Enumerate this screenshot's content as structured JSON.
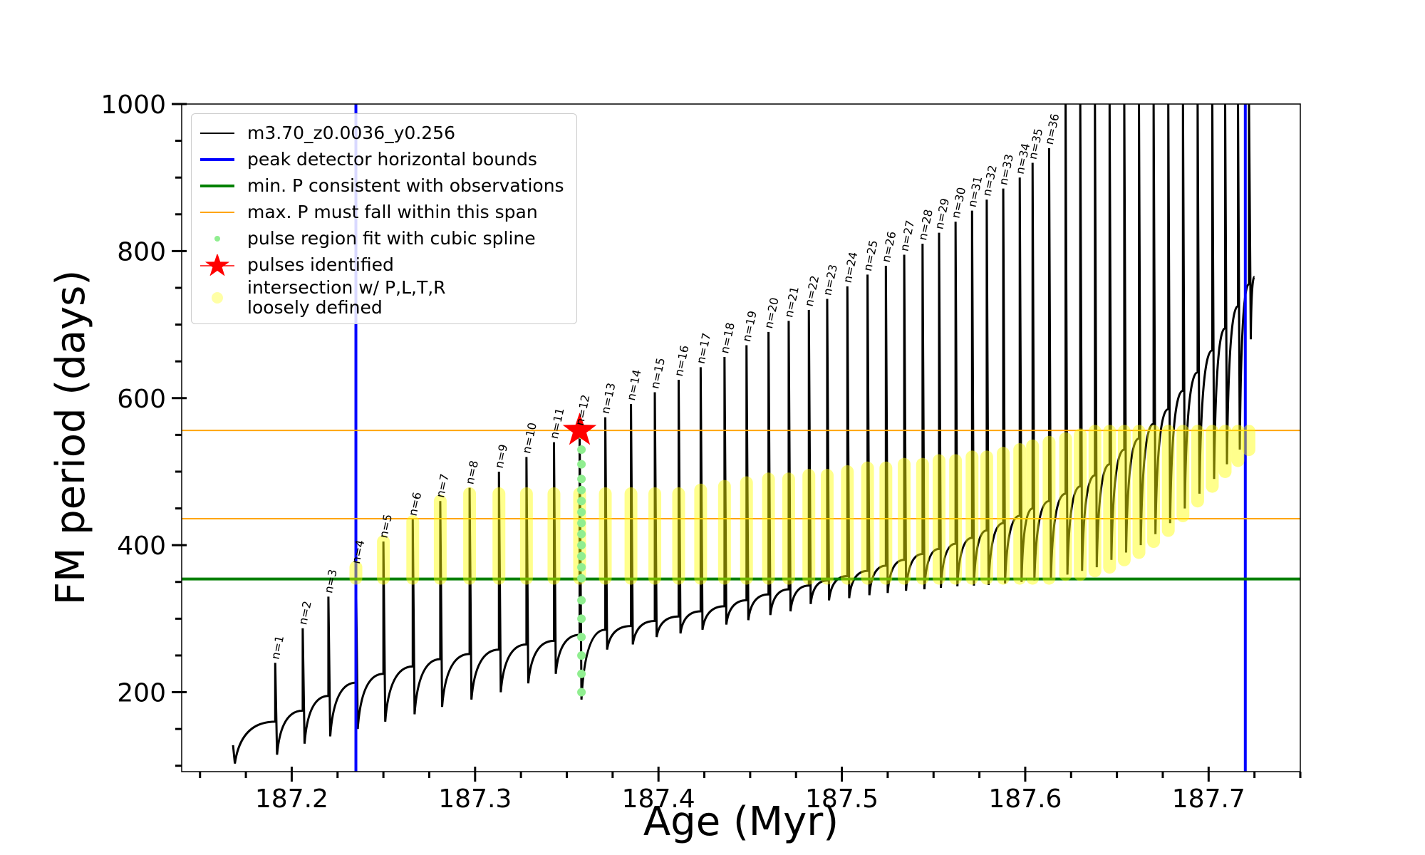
{
  "chart_data": {
    "type": "line",
    "xlabel": "Age (Myr)",
    "ylabel": "FM period (days)",
    "xlim": [
      187.14,
      187.75
    ],
    "ylim": [
      92,
      1000
    ],
    "xticks": [
      187.2,
      187.3,
      187.4,
      187.5,
      187.6,
      187.7
    ],
    "yticks": [
      200,
      400,
      600,
      800,
      1000
    ],
    "xminorticks": [
      187.15,
      187.175,
      187.225,
      187.25,
      187.275,
      187.325,
      187.35,
      187.375,
      187.425,
      187.45,
      187.475,
      187.525,
      187.55,
      187.575,
      187.625,
      187.65,
      187.675,
      187.725,
      187.75
    ],
    "yminorticks": [
      100,
      150,
      250,
      300,
      350,
      450,
      500,
      550,
      650,
      700,
      750,
      850,
      900,
      950
    ],
    "legend": "upper left",
    "annotations": [
      "n=1",
      "n=2",
      "n=3",
      "n=4",
      "n=5",
      "n=6",
      "n=7",
      "n=8",
      "n=9",
      "n=10",
      "n=11",
      "n=12",
      "n=13",
      "n=14",
      "n=15",
      "n=16",
      "n=17",
      "n=18",
      "n=19",
      "n=20",
      "n=21",
      "n=22",
      "n=23",
      "n=24",
      "n=25",
      "n=26",
      "n=27",
      "n=28",
      "n=29",
      "n=30",
      "n=31",
      "n=32",
      "n=33",
      "n=34",
      "n=35",
      "n=36"
    ],
    "series": [
      {
        "name": "m3.70_z0.0036_y0.256",
        "kind": "line",
        "color": "#000000",
        "x": [
          187.168,
          187.169,
          187.191,
          187.191,
          187.192,
          187.206,
          187.206,
          187.207,
          187.22,
          187.22,
          187.221,
          187.235,
          187.235,
          187.236,
          187.25,
          187.25,
          187.251,
          187.266,
          187.266,
          187.267,
          187.281,
          187.281,
          187.282,
          187.297,
          187.297,
          187.298,
          187.313,
          187.313,
          187.314,
          187.328,
          187.328,
          187.329,
          187.343,
          187.343,
          187.344,
          187.357,
          187.357,
          187.358,
          187.371,
          187.371,
          187.372,
          187.385,
          187.385,
          187.386,
          187.398,
          187.398,
          187.399,
          187.411,
          187.411,
          187.412,
          187.423,
          187.423,
          187.424,
          187.436,
          187.436,
          187.437,
          187.448,
          187.448,
          187.449,
          187.46,
          187.46,
          187.461,
          187.471,
          187.471,
          187.472,
          187.482,
          187.482,
          187.483,
          187.492,
          187.492,
          187.493,
          187.503,
          187.503,
          187.504,
          187.514,
          187.514,
          187.515,
          187.524,
          187.524,
          187.525,
          187.534,
          187.534,
          187.535,
          187.544,
          187.544,
          187.545,
          187.553,
          187.553,
          187.554,
          187.562,
          187.562,
          187.563,
          187.571,
          187.571,
          187.572,
          187.579,
          187.579,
          187.58,
          187.588,
          187.588,
          187.589,
          187.597,
          187.597,
          187.598,
          187.604,
          187.604,
          187.605,
          187.613,
          187.613,
          187.614,
          187.622,
          187.622,
          187.623,
          187.63,
          187.63,
          187.631,
          187.638,
          187.638,
          187.639,
          187.646,
          187.646,
          187.647,
          187.654,
          187.654,
          187.655,
          187.662,
          187.662,
          187.663,
          187.67,
          187.67,
          187.671,
          187.678,
          187.678,
          187.679,
          187.686,
          187.686,
          187.687,
          187.694,
          187.694,
          187.695,
          187.702,
          187.702,
          187.703,
          187.709,
          187.709,
          187.71,
          187.716,
          187.716,
          187.717,
          187.722,
          187.722,
          187.723,
          187.725
        ],
        "values": [
          128,
          103,
          160,
          240,
          115,
          175,
          287,
          130,
          195,
          330,
          140,
          213,
          370,
          150,
          225,
          405,
          160,
          235,
          435,
          170,
          245,
          460,
          180,
          252,
          478,
          190,
          258,
          500,
          200,
          265,
          520,
          212,
          270,
          540,
          225,
          278,
          558,
          190,
          285,
          574,
          258,
          290,
          592,
          265,
          297,
          608,
          275,
          303,
          625,
          280,
          310,
          642,
          285,
          317,
          656,
          292,
          325,
          672,
          298,
          333,
          690,
          305,
          340,
          705,
          310,
          345,
          720,
          320,
          352,
          735,
          325,
          358,
          752,
          328,
          365,
          768,
          332,
          372,
          780,
          335,
          380,
          795,
          338,
          388,
          810,
          340,
          395,
          825,
          342,
          402,
          840,
          344,
          410,
          855,
          345,
          420,
          870,
          346,
          430,
          885,
          348,
          440,
          900,
          350,
          450,
          920,
          352,
          460,
          940,
          355,
          470,
          1010,
          360,
          480,
          1010,
          365,
          495,
          1010,
          370,
          510,
          1010,
          380,
          530,
          1010,
          390,
          545,
          1010,
          400,
          565,
          1010,
          415,
          585,
          1010,
          430,
          610,
          1010,
          450,
          635,
          1010,
          470,
          665,
          1010,
          490,
          695,
          1010,
          510,
          725,
          1010,
          530,
          755,
          1010,
          680,
          765
        ]
      },
      {
        "name": "peak detector horizontal bounds",
        "kind": "vline",
        "color": "#0000ff",
        "x": [
          187.235,
          187.72
        ]
      },
      {
        "name": "min. P consistent with observations",
        "kind": "hline",
        "color": "#008000",
        "values": [
          354
        ]
      },
      {
        "name": "max. P must fall within this span",
        "kind": "hline",
        "color": "#ffa500",
        "values": [
          556,
          436
        ]
      },
      {
        "name": "pulse region fit with cubic spline",
        "kind": "scatter",
        "color": "#90ee90",
        "x": [
          187.358,
          187.358,
          187.358,
          187.358,
          187.358,
          187.358,
          187.358,
          187.358,
          187.358,
          187.358,
          187.358,
          187.358,
          187.358,
          187.358,
          187.358,
          187.358,
          187.358,
          187.358,
          187.358
        ],
        "values": [
          200,
          225,
          250,
          275,
          300,
          325,
          355,
          370,
          385,
          400,
          415,
          430,
          445,
          460,
          475,
          490,
          510,
          530,
          550
        ]
      },
      {
        "name": "pulses identified",
        "kind": "star",
        "color": "#ff0000",
        "x": [
          187.357
        ],
        "values": [
          556
        ]
      },
      {
        "name": "intersection w/ P,L,T,R\nloosely defined",
        "kind": "range",
        "color": "#ffff00",
        "x": [
          187.235,
          187.25,
          187.266,
          187.281,
          187.297,
          187.313,
          187.328,
          187.343,
          187.357,
          187.371,
          187.385,
          187.398,
          187.411,
          187.423,
          187.436,
          187.448,
          187.46,
          187.471,
          187.482,
          187.492,
          187.503,
          187.514,
          187.524,
          187.534,
          187.544,
          187.553,
          187.562,
          187.571,
          187.579,
          187.588,
          187.597,
          187.604,
          187.613,
          187.622,
          187.63,
          187.638,
          187.646,
          187.654,
          187.662,
          187.67,
          187.678,
          187.686,
          187.694,
          187.702,
          187.709,
          187.716,
          187.722
        ],
        "low": [
          355,
          355,
          355,
          355,
          355,
          355,
          355,
          355,
          355,
          355,
          355,
          355,
          355,
          355,
          355,
          355,
          355,
          355,
          355,
          355,
          355,
          355,
          355,
          355,
          355,
          355,
          355,
          355,
          355,
          355,
          355,
          355,
          355,
          360,
          360,
          365,
          370,
          380,
          390,
          405,
          420,
          440,
          460,
          480,
          500,
          515,
          530
        ],
        "high": [
          370,
          405,
          432,
          460,
          470,
          470,
          470,
          470,
          470,
          470,
          470,
          470,
          470,
          475,
          480,
          485,
          490,
          490,
          495,
          495,
          500,
          505,
          505,
          510,
          510,
          515,
          515,
          520,
          520,
          525,
          530,
          535,
          540,
          545,
          550,
          555,
          555,
          555,
          555,
          555,
          555,
          555,
          555,
          555,
          555,
          555,
          555
        ]
      }
    ]
  }
}
